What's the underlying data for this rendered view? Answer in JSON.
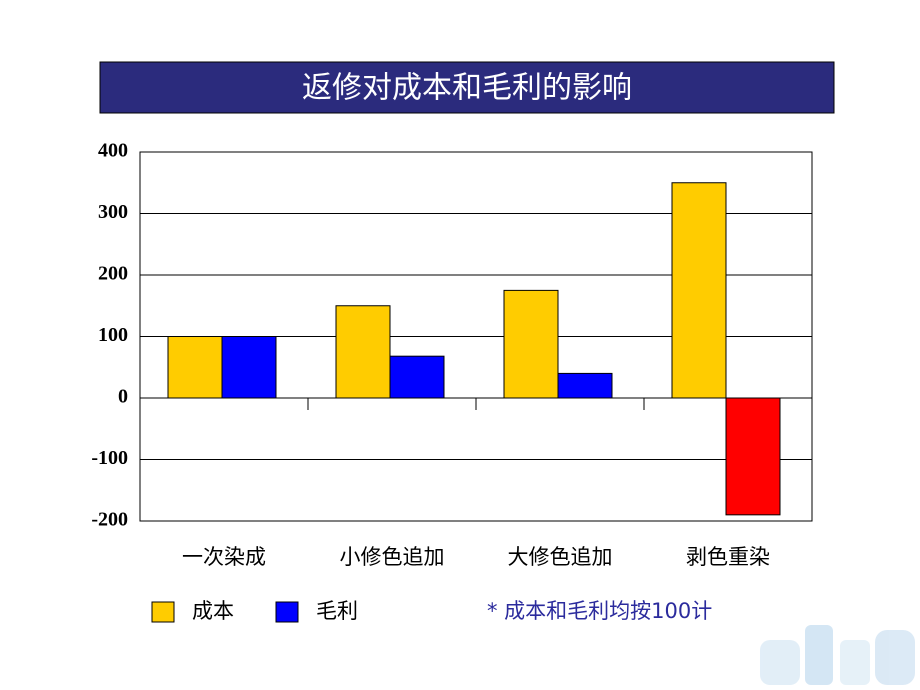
{
  "chart_data": {
    "type": "bar",
    "title": "返修对成本和毛利的影响",
    "categories": [
      "一次染成",
      "小修色追加",
      "大修色追加",
      "剥色重染"
    ],
    "series": [
      {
        "name": "成本",
        "color": "#ffcc00",
        "values": [
          100,
          150,
          175,
          350
        ]
      },
      {
        "name": "毛利",
        "color": "#0000ff",
        "negative_color": "#ff0000",
        "values": [
          100,
          68,
          40,
          -190
        ]
      }
    ],
    "ylim": [
      -200,
      400
    ],
    "yticks": [
      -200,
      -100,
      0,
      100,
      200,
      300,
      400
    ],
    "grid": true,
    "annotation": "* 成本和毛利均按100计"
  }
}
